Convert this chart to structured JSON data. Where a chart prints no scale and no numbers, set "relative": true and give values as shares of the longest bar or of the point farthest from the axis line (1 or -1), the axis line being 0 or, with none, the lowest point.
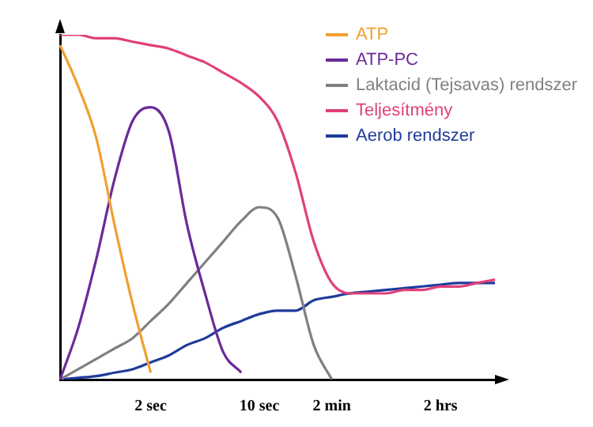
{
  "chart_data": {
    "type": "line",
    "relative": true,
    "legend": "top right",
    "grid": false,
    "marker": "none",
    "line_style": "solid",
    "categories": [
      null,
      null,
      null,
      null,
      null,
      "2 sec",
      null,
      null,
      null,
      null,
      null,
      "10 sec",
      null,
      null,
      null,
      "2 min",
      null,
      null,
      null,
      null,
      null,
      "2 hrs",
      null,
      null,
      null
    ],
    "series": [
      {
        "name": "ATP",
        "color": "#f0a030",
        "values": [
          0.97,
          0.85,
          0.7,
          0.45,
          0.22,
          0.02,
          null,
          null,
          null,
          null,
          null,
          null,
          null,
          null,
          null,
          null,
          null,
          null,
          null,
          null,
          null,
          null,
          null,
          null,
          null
        ]
      },
      {
        "name": "ATP-PC",
        "color": "#6a2a9a",
        "values": [
          0,
          0.15,
          0.35,
          0.58,
          0.75,
          0.79,
          0.72,
          0.45,
          0.25,
          0.08,
          0.02,
          null,
          null,
          null,
          null,
          null,
          null,
          null,
          null,
          null,
          null,
          null,
          null,
          null,
          null
        ]
      },
      {
        "name": "Laktacid (Tejsavas) rendszer",
        "color": "#808080",
        "values": [
          0,
          0.03,
          0.06,
          0.09,
          0.12,
          0.17,
          0.22,
          0.28,
          0.34,
          0.4,
          0.46,
          0.5,
          0.47,
          0.3,
          0.1,
          0.0,
          null,
          null,
          null,
          null,
          null,
          null,
          null,
          null,
          null
        ]
      },
      {
        "name": "Teljesítmény",
        "color": "#e0407a",
        "values": [
          1,
          1,
          0.99,
          0.99,
          0.98,
          0.97,
          0.96,
          0.94,
          0.92,
          0.89,
          0.86,
          0.82,
          0.75,
          0.6,
          0.4,
          0.28,
          0.25,
          0.25,
          0.25,
          0.26,
          0.26,
          0.27,
          0.27,
          0.28,
          0.29
        ]
      },
      {
        "name": "Aerob rendszer",
        "color": "#1f3a9a",
        "values": [
          0,
          0.005,
          0.01,
          0.02,
          0.03,
          0.05,
          0.07,
          0.1,
          0.12,
          0.15,
          0.17,
          0.19,
          0.2,
          0.2,
          0.23,
          0.24,
          0.25,
          0.255,
          0.26,
          0.265,
          0.27,
          0.275,
          0.28,
          0.28,
          0.28
        ]
      }
    ]
  }
}
